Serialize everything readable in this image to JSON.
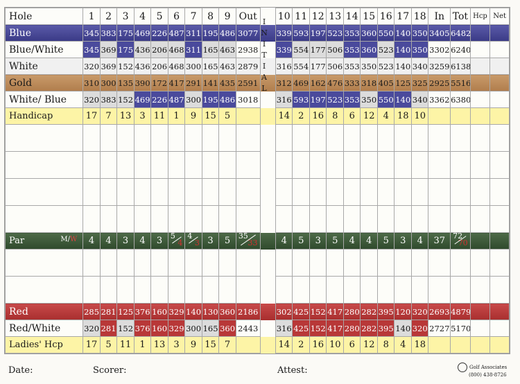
{
  "header": {
    "hole": "Hole",
    "holes_front": [
      "1",
      "2",
      "3",
      "4",
      "5",
      "6",
      "7",
      "8",
      "9"
    ],
    "out": "Out",
    "holes_back": [
      "10",
      "11",
      "12",
      "13",
      "14",
      "15",
      "16",
      "17",
      "18"
    ],
    "in": "In",
    "tot": "Tot",
    "hcp": "Hcp",
    "net": "Net"
  },
  "initial": [
    "I",
    "N",
    "I",
    "T",
    "I",
    "A",
    "L"
  ],
  "rows": {
    "blue": {
      "label": "Blue",
      "front": [
        "345",
        "383",
        "175",
        "469",
        "226",
        "487",
        "311",
        "195",
        "486"
      ],
      "out": "3077",
      "back": [
        "339",
        "593",
        "197",
        "523",
        "353",
        "360",
        "550",
        "140",
        "350"
      ],
      "in": "3405",
      "tot": "6482"
    },
    "bluewhite": {
      "label": "Blue/White",
      "front": [
        "345",
        "369",
        "175",
        "436",
        "206",
        "468",
        "311",
        "165",
        "463"
      ],
      "out": "2938",
      "back": [
        "339",
        "554",
        "177",
        "506",
        "353",
        "360",
        "523",
        "140",
        "350"
      ],
      "in": "3302",
      "tot": "6240"
    },
    "white": {
      "label": "White",
      "front": [
        "320",
        "369",
        "152",
        "436",
        "206",
        "468",
        "300",
        "165",
        "463"
      ],
      "out": "2879",
      "back": [
        "316",
        "554",
        "177",
        "506",
        "353",
        "350",
        "523",
        "140",
        "340"
      ],
      "in": "3259",
      "tot": "6138"
    },
    "gold": {
      "label": "Gold",
      "front": [
        "310",
        "300",
        "135",
        "390",
        "172",
        "417",
        "291",
        "141",
        "435"
      ],
      "out": "2591",
      "back": [
        "312",
        "469",
        "162",
        "476",
        "333",
        "318",
        "405",
        "125",
        "325"
      ],
      "in": "2925",
      "tot": "5516"
    },
    "whiteblue": {
      "label": "White/ Blue",
      "front": [
        "320",
        "383",
        "152",
        "469",
        "226",
        "487",
        "300",
        "195",
        "486"
      ],
      "out": "3018",
      "back": [
        "316",
        "593",
        "197",
        "523",
        "353",
        "350",
        "550",
        "140",
        "340"
      ],
      "in": "3362",
      "tot": "6380"
    },
    "handicap": {
      "label": "Handicap",
      "front": [
        "17",
        "7",
        "13",
        "3",
        "11",
        "1",
        "9",
        "15",
        "5"
      ],
      "back": [
        "14",
        "2",
        "16",
        "8",
        "6",
        "12",
        "4",
        "18",
        "10"
      ]
    },
    "par": {
      "label": "Par",
      "m_label": "M",
      "w_label": "W",
      "front": [
        "4",
        "4",
        "3",
        "4",
        "3",
        "",
        "",
        "3",
        "5"
      ],
      "h6": {
        "m": "5",
        "w": "4"
      },
      "h7": {
        "m": "4",
        "w": "3"
      },
      "out": {
        "m": "35",
        "w": "33"
      },
      "back": [
        "4",
        "5",
        "3",
        "5",
        "4",
        "4",
        "5",
        "3",
        "4"
      ],
      "in": "37",
      "tot": {
        "m": "72",
        "w": "70"
      }
    },
    "red": {
      "label": "Red",
      "front": [
        "285",
        "281",
        "125",
        "376",
        "160",
        "329",
        "140",
        "130",
        "360"
      ],
      "out": "2186",
      "back": [
        "302",
        "425",
        "152",
        "417",
        "280",
        "282",
        "395",
        "120",
        "320"
      ],
      "in": "2693",
      "tot": "4879"
    },
    "redwhite": {
      "label": "Red/White",
      "front": [
        "320",
        "281",
        "152",
        "376",
        "160",
        "329",
        "300",
        "165",
        "360"
      ],
      "out": "2443",
      "back": [
        "316",
        "425",
        "152",
        "417",
        "280",
        "282",
        "395",
        "140",
        "320"
      ],
      "in": "2727",
      "tot": "5170"
    },
    "ladies": {
      "label": "Ladies' Hcp",
      "front": [
        "17",
        "5",
        "11",
        "1",
        "13",
        "3",
        "9",
        "15",
        "7"
      ],
      "back": [
        "14",
        "2",
        "16",
        "10",
        "6",
        "12",
        "8",
        "4",
        "18"
      ]
    }
  },
  "footer": {
    "date": "Date:",
    "scorer": "Scorer:",
    "attest": "Attest:",
    "logo_line1": "Golf Associates",
    "logo_line2": "(800) 438-8726"
  },
  "colors": {
    "blue": "#3a3a86",
    "gold": "#b07d4c",
    "par_green": "#2f4a2c",
    "red": "#a82e2e",
    "handicap_yellow": "#fdf4a6"
  }
}
